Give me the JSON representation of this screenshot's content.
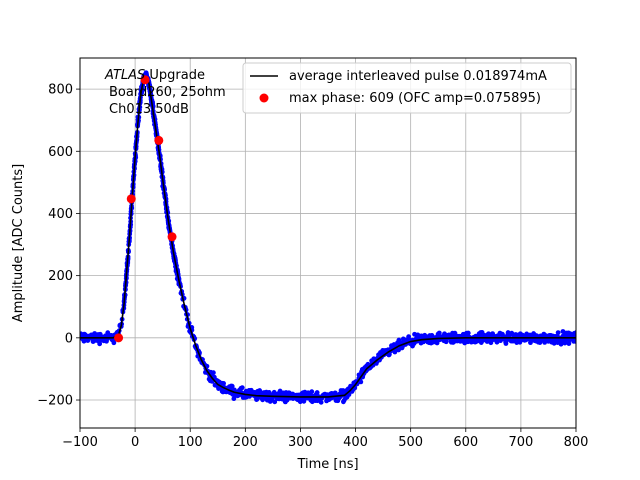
{
  "chart_data": {
    "type": "scatter",
    "xlabel": "Time [ns]",
    "ylabel": "Amplitude [ADC Counts]",
    "xlim": [
      -100,
      800
    ],
    "ylim": [
      -290,
      900
    ],
    "grid": true,
    "legend_placement": "top-right",
    "xticks": [
      -100,
      0,
      100,
      200,
      300,
      400,
      500,
      600,
      700,
      800
    ],
    "yticks": [
      -200,
      0,
      200,
      400,
      600,
      800
    ],
    "annotation": {
      "line1_italic": "ATLAS",
      "line1_rest": " Upgrade",
      "line2": "Board260, 25ohm",
      "line3": "Ch013,50dB"
    },
    "series": [
      {
        "name": "average interleaved pulse 0.018974mA",
        "kind": "line",
        "color": "#000000",
        "x": [
          -100,
          -40,
          -30,
          -25,
          -20,
          -15,
          -10,
          -5,
          0,
          5,
          10,
          15,
          20,
          25,
          30,
          35,
          40,
          45,
          50,
          60,
          70,
          80,
          90,
          100,
          110,
          120,
          130,
          140,
          150,
          160,
          170,
          180,
          200,
          220,
          250,
          300,
          350,
          380,
          390,
          400,
          410,
          420,
          440,
          460,
          480,
          500,
          520,
          550,
          600,
          650,
          700,
          750,
          800
        ],
        "y": [
          0,
          0,
          10,
          40,
          110,
          220,
          330,
          460,
          580,
          690,
          780,
          830,
          840,
          820,
          760,
          700,
          640,
          580,
          510,
          380,
          270,
          180,
          100,
          30,
          -25,
          -70,
          -105,
          -130,
          -150,
          -160,
          -168,
          -175,
          -182,
          -186,
          -188,
          -190,
          -190,
          -185,
          -170,
          -150,
          -125,
          -100,
          -70,
          -45,
          -25,
          -12,
          -6,
          -2,
          0,
          0,
          0,
          0,
          0
        ]
      },
      {
        "name": "",
        "kind": "scatter-band",
        "color": "#0000ff",
        "noise": 12
      },
      {
        "name": "max phase: 609 (OFC amp=0.075895)",
        "kind": "points",
        "color": "#ff0000",
        "x": [
          -30,
          -7,
          18,
          43,
          67
        ],
        "y": [
          0,
          447,
          830,
          635,
          325
        ]
      }
    ]
  }
}
